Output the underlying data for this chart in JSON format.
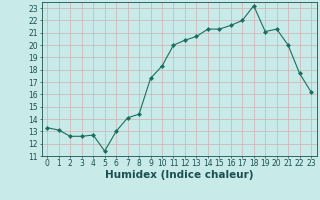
{
  "x": [
    0,
    1,
    2,
    3,
    4,
    5,
    6,
    7,
    8,
    9,
    10,
    11,
    12,
    13,
    14,
    15,
    16,
    17,
    18,
    19,
    20,
    21,
    22,
    23
  ],
  "y": [
    13.3,
    13.1,
    12.6,
    12.6,
    12.7,
    11.4,
    13.0,
    14.1,
    14.4,
    17.3,
    18.3,
    20.0,
    20.4,
    20.7,
    21.3,
    21.3,
    21.6,
    22.0,
    23.2,
    21.1,
    21.3,
    20.0,
    17.7,
    16.2
  ],
  "line_color": "#1a7060",
  "marker": "D",
  "marker_size": 2.0,
  "bg_color": "#c8eae8",
  "grid_color": "#d0b0b0",
  "xlabel": "Humidex (Indice chaleur)",
  "ylim": [
    11,
    23.5
  ],
  "xlim": [
    -0.5,
    23.5
  ],
  "yticks": [
    11,
    12,
    13,
    14,
    15,
    16,
    17,
    18,
    19,
    20,
    21,
    22,
    23
  ],
  "xticks": [
    0,
    1,
    2,
    3,
    4,
    5,
    6,
    7,
    8,
    9,
    10,
    11,
    12,
    13,
    14,
    15,
    16,
    17,
    18,
    19,
    20,
    21,
    22,
    23
  ],
  "tick_label_fontsize": 5.5,
  "xlabel_fontsize": 7.5,
  "label_color": "#1a5050",
  "linewidth": 0.8
}
